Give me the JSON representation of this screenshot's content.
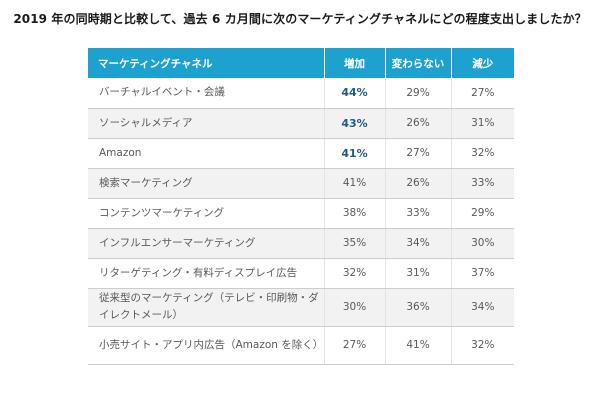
{
  "chart_data": {
    "type": "table",
    "title": "2019 年の同時期と比較して、過去 6 カ月間に次のマーケティングチャネルにどの程度支出しましたか？",
    "columns": [
      "マーケティングチャネル",
      "増加",
      "変わらない",
      "減少"
    ],
    "rows": [
      {
        "channel": "バーチャルイベント・会議",
        "values": [
          "44%",
          "29%",
          "27%"
        ],
        "highlight": true
      },
      {
        "channel": "ソーシャルメディア",
        "values": [
          "43%",
          "26%",
          "31%"
        ],
        "highlight": true
      },
      {
        "channel": "Amazon",
        "values": [
          "41%",
          "27%",
          "32%"
        ],
        "highlight": true
      },
      {
        "channel": "検索マーケティング",
        "values": [
          "41%",
          "26%",
          "33%"
        ],
        "highlight": false
      },
      {
        "channel": "コンテンツマーケティング",
        "values": [
          "38%",
          "33%",
          "29%"
        ],
        "highlight": false
      },
      {
        "channel": "インフルエンサーマーケティング",
        "values": [
          "35%",
          "34%",
          "30%"
        ],
        "highlight": false
      },
      {
        "channel": "リターゲティング・有料ディスプレイ広告",
        "values": [
          "32%",
          "31%",
          "37%"
        ],
        "highlight": false
      },
      {
        "channel": "従来型のマーケティング（テレビ・印刷物・ダイレクトメール）",
        "values": [
          "30%",
          "36%",
          "34%"
        ],
        "highlight": false
      },
      {
        "channel": "小売サイト・アプリ内広告（Amazon を除く）",
        "values": [
          "27%",
          "41%",
          "32%"
        ],
        "highlight": false
      }
    ]
  },
  "colors": {
    "header_bg": "#1da1cf",
    "highlight_text": "#1f5c85",
    "row_alt_bg": "#f2f2f2"
  }
}
